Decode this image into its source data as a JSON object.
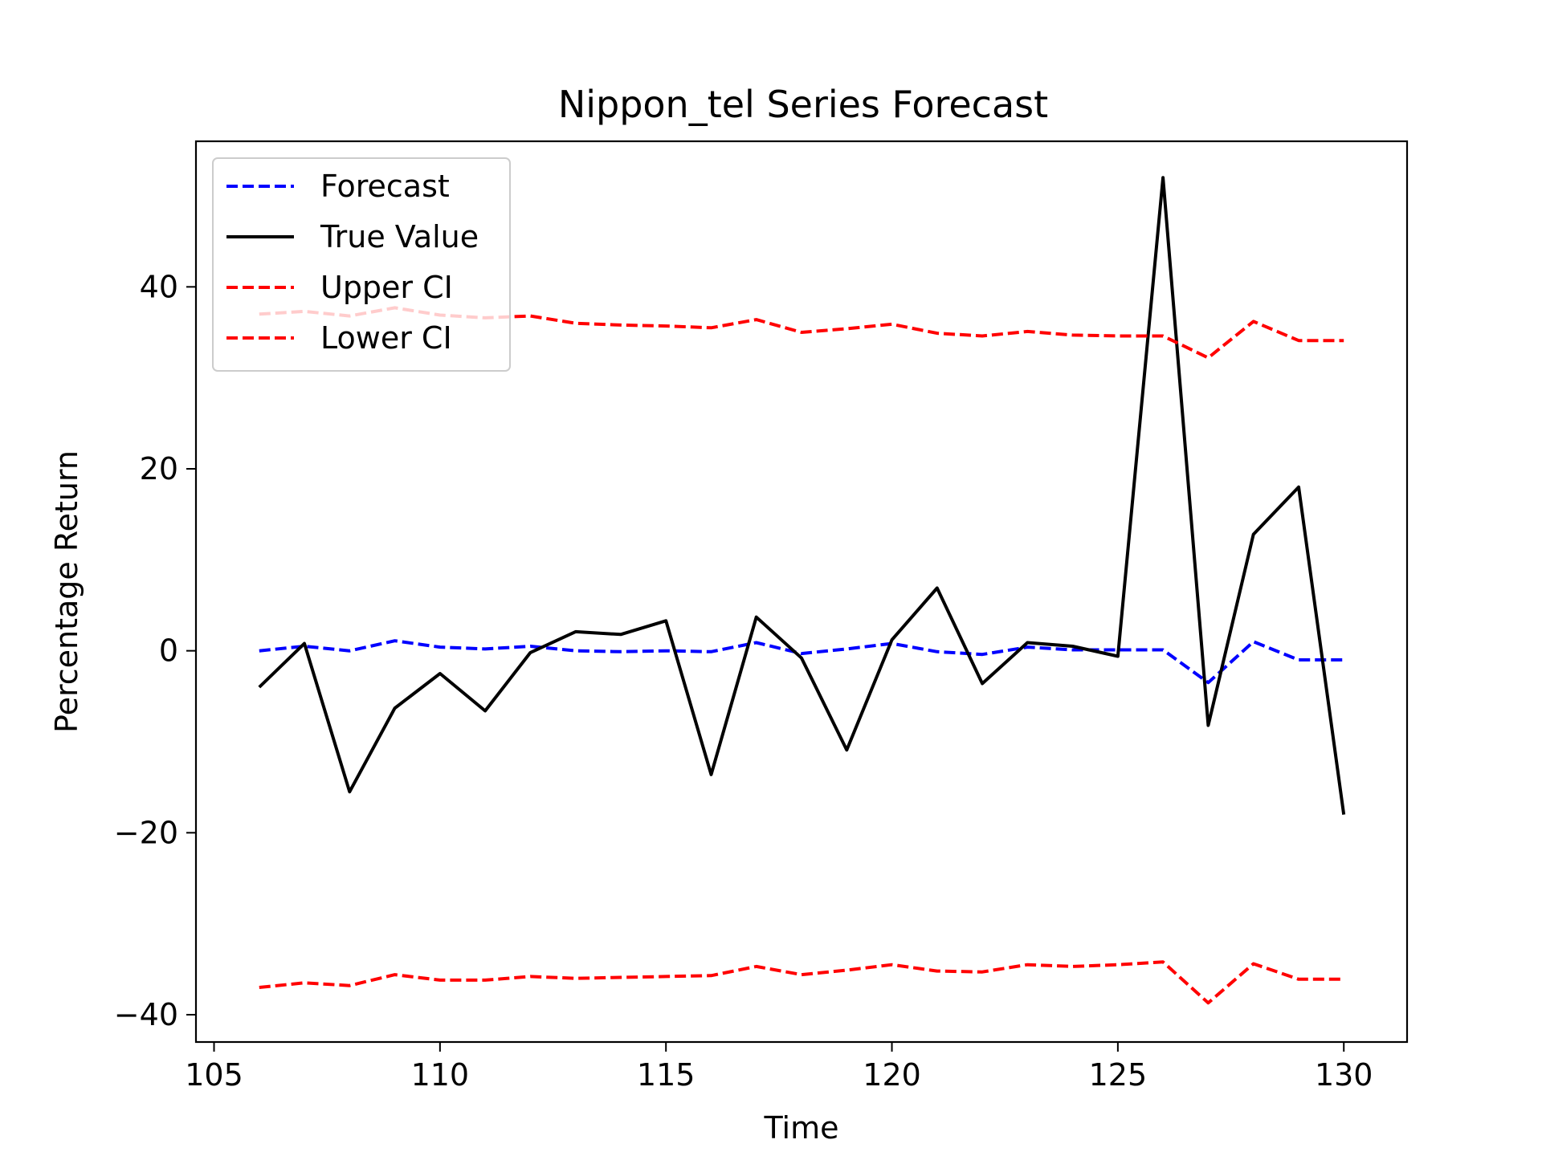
{
  "chart_data": {
    "type": "line",
    "title": "Nippon_tel Series Forecast",
    "xlabel": "Time",
    "ylabel": "Percentage Return",
    "xlim": [
      104.6,
      131.4
    ],
    "ylim": [
      -43,
      56
    ],
    "xticks": [
      105,
      110,
      115,
      120,
      125,
      130
    ],
    "yticks": [
      -40,
      -20,
      0,
      20,
      40
    ],
    "xtick_labels": [
      "105",
      "110",
      "115",
      "120",
      "125",
      "130"
    ],
    "ytick_labels": [
      "−40",
      "−20",
      "0",
      "20",
      "40"
    ],
    "grid": false,
    "legend_position": "top-left",
    "x": [
      106,
      107,
      108,
      109,
      110,
      111,
      112,
      113,
      114,
      115,
      116,
      117,
      118,
      119,
      120,
      121,
      122,
      123,
      124,
      125,
      126,
      127,
      128,
      129,
      130
    ],
    "series": [
      {
        "name": "Forecast",
        "color": "#0000ff",
        "style": "dashed",
        "values": [
          0.0,
          0.5,
          0.0,
          1.1,
          0.4,
          0.2,
          0.5,
          0.0,
          -0.1,
          0.0,
          -0.1,
          0.9,
          -0.3,
          0.2,
          0.8,
          -0.1,
          -0.4,
          0.4,
          0.1,
          0.1,
          0.1,
          -3.5,
          1.0,
          -1.0,
          -1.0
        ]
      },
      {
        "name": "True Value",
        "color": "#000000",
        "style": "solid",
        "values": [
          -4.0,
          0.8,
          -15.5,
          -6.3,
          -2.5,
          -6.6,
          -0.2,
          2.1,
          1.8,
          3.3,
          -13.6,
          3.7,
          -0.8,
          -10.9,
          1.2,
          6.9,
          -3.6,
          0.9,
          0.5,
          -0.6,
          52.0,
          -8.2,
          12.8,
          18.0,
          -18.0
        ]
      },
      {
        "name": "Upper CI",
        "color": "#ff0000",
        "style": "dashed",
        "values": [
          37.0,
          37.3,
          36.8,
          37.7,
          36.9,
          36.6,
          36.8,
          36.0,
          35.8,
          35.7,
          35.5,
          36.4,
          35.0,
          35.4,
          35.9,
          34.9,
          34.6,
          35.1,
          34.7,
          34.6,
          34.6,
          32.2,
          36.2,
          34.1,
          34.1
        ]
      },
      {
        "name": "Lower CI",
        "color": "#ff0000",
        "style": "dashed",
        "values": [
          -37.0,
          -36.5,
          -36.8,
          -35.6,
          -36.2,
          -36.2,
          -35.8,
          -36.0,
          -35.9,
          -35.8,
          -35.7,
          -34.7,
          -35.6,
          -35.1,
          -34.5,
          -35.2,
          -35.3,
          -34.5,
          -34.7,
          -34.5,
          -34.2,
          -38.7,
          -34.4,
          -36.1,
          -36.1
        ]
      }
    ]
  }
}
